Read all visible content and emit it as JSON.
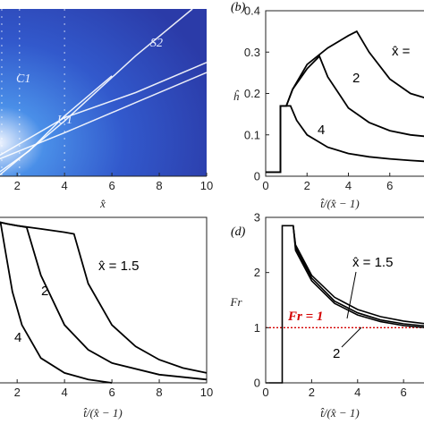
{
  "chart_data": [
    {
      "panel": "(a)",
      "type": "heatmap",
      "xlabel": "x̂",
      "xlim": [
        1.2,
        10
      ],
      "ylim": [
        0,
        1
      ],
      "x_ticks": [
        "2",
        "4",
        "6",
        "8",
        "10"
      ],
      "colormap": [
        "#f2f6ff",
        "#4a8fe8",
        "#3259cc",
        "#2b3ba8"
      ],
      "annotations": [
        "C1",
        "U1",
        "S2"
      ],
      "lines": [
        {
          "name": "S2",
          "points": [
            [
              1.2,
              0.0
            ],
            [
              4.0,
              0.33
            ],
            [
              7.0,
              0.72
            ],
            [
              9.4,
              1.0
            ]
          ]
        },
        {
          "name": "upper",
          "points": [
            [
              1.2,
              0.12
            ],
            [
              4.0,
              0.35
            ],
            [
              7.0,
              0.5
            ],
            [
              10.0,
              0.68
            ]
          ]
        },
        {
          "name": "lower",
          "points": [
            [
              1.2,
              0.1
            ],
            [
              4.0,
              0.26
            ],
            [
              7.0,
              0.44
            ],
            [
              10.0,
              0.62
            ]
          ]
        },
        {
          "name": "U1-curve",
          "points": [
            [
              1.2,
              0.02
            ],
            [
              2.5,
              0.15
            ],
            [
              4.0,
              0.36
            ],
            [
              6.0,
              0.6
            ]
          ]
        }
      ]
    },
    {
      "panel": "(b)",
      "type": "line",
      "xlabel": "t̂/(x̂ − 1)",
      "ylabel": "ĥ",
      "xlim": [
        0,
        8
      ],
      "ylim": [
        0,
        0.4
      ],
      "x_ticks": [
        "0",
        "2",
        "4",
        "6"
      ],
      "y_ticks": [
        "0",
        "0.1",
        "0.2",
        "0.3",
        "0.4"
      ],
      "curve_labels": [
        "x̂ =",
        "2",
        "4"
      ],
      "series": [
        {
          "x": [
            0,
            0.72,
            0.72,
            1.0,
            1.3,
            2.0,
            3.0,
            4.0,
            4.4,
            5.0,
            6.0,
            7.0,
            8.0
          ],
          "y": [
            0.01,
            0.01,
            0.17,
            0.17,
            0.21,
            0.27,
            0.31,
            0.34,
            0.35,
            0.3,
            0.235,
            0.2,
            0.185
          ]
        },
        {
          "x": [
            0,
            0.72,
            0.72,
            1.0,
            1.3,
            2.0,
            2.6,
            3.0,
            4.0,
            5.0,
            6.0,
            7.0,
            8.0
          ],
          "y": [
            0.01,
            0.01,
            0.17,
            0.17,
            0.21,
            0.26,
            0.29,
            0.24,
            0.165,
            0.13,
            0.11,
            0.1,
            0.095
          ]
        },
        {
          "x": [
            0,
            0.72,
            0.72,
            1.2,
            1.5,
            2.0,
            3.0,
            4.0,
            5.0,
            6.0,
            7.0,
            8.0
          ],
          "y": [
            0.01,
            0.01,
            0.17,
            0.17,
            0.135,
            0.1,
            0.07,
            0.055,
            0.047,
            0.042,
            0.038,
            0.035
          ]
        }
      ]
    },
    {
      "panel": "(c)",
      "type": "line",
      "xlabel": "t̂/(x̂ − 1)",
      "xlim": [
        1.2,
        10
      ],
      "ylim": [
        0,
        1
      ],
      "x_ticks": [
        "2",
        "4",
        "6",
        "8",
        "10"
      ],
      "curve_labels": [
        "x̂ = 1.5",
        "2",
        "4"
      ],
      "series": [
        {
          "x": [
            1.2,
            1.3,
            1.6,
            2.0,
            3.0,
            4.0,
            4.4,
            5.0,
            6.0,
            7.0,
            8.0,
            9.0,
            10.0
          ],
          "y": [
            0.97,
            0.97,
            0.96,
            0.95,
            0.93,
            0.91,
            0.9,
            0.6,
            0.35,
            0.22,
            0.14,
            0.09,
            0.06
          ]
        },
        {
          "x": [
            1.2,
            1.3,
            1.6,
            2.0,
            2.4,
            3.0,
            4.0,
            5.0,
            6.0,
            8.0,
            10.0
          ],
          "y": [
            0.97,
            0.97,
            0.96,
            0.95,
            0.94,
            0.65,
            0.35,
            0.2,
            0.12,
            0.05,
            0.02
          ]
        },
        {
          "x": [
            1.2,
            1.3,
            1.5,
            1.8,
            2.2,
            3.0,
            4.0,
            5.0,
            6.0
          ],
          "y": [
            0.97,
            0.97,
            0.8,
            0.55,
            0.35,
            0.15,
            0.06,
            0.02,
            0.0
          ]
        }
      ]
    },
    {
      "panel": "(d)",
      "type": "line",
      "xlabel": "t̂/(x̂ − 1)",
      "ylabel": "Fr",
      "xlim": [
        0,
        7.2
      ],
      "ylim": [
        0,
        3
      ],
      "x_ticks": [
        "0",
        "2",
        "4",
        "6"
      ],
      "y_ticks": [
        "0",
        "1",
        "2",
        "3"
      ],
      "curve_labels": [
        "x̂ = 1.5",
        "2"
      ],
      "reference_line": {
        "label": "Fr = 1",
        "y": 1,
        "color": "#d40000"
      },
      "series": [
        {
          "x": [
            0,
            0.72,
            0.72,
            1.2,
            1.3,
            2.0,
            3.0,
            4.0,
            5.0,
            6.0,
            7.2
          ],
          "y": [
            0,
            0,
            2.85,
            2.85,
            2.5,
            1.95,
            1.55,
            1.33,
            1.2,
            1.12,
            1.06
          ]
        },
        {
          "x": [
            1.2,
            1.3,
            2.0,
            3.0,
            4.0,
            5.0,
            6.0,
            7.2
          ],
          "y": [
            2.85,
            2.45,
            1.9,
            1.48,
            1.27,
            1.14,
            1.07,
            1.02
          ]
        },
        {
          "x": [
            1.2,
            1.3,
            2.0,
            3.0,
            4.0,
            5.0,
            6.0,
            7.2
          ],
          "y": [
            2.85,
            2.4,
            1.85,
            1.44,
            1.23,
            1.11,
            1.04,
            0.99
          ]
        }
      ]
    }
  ]
}
